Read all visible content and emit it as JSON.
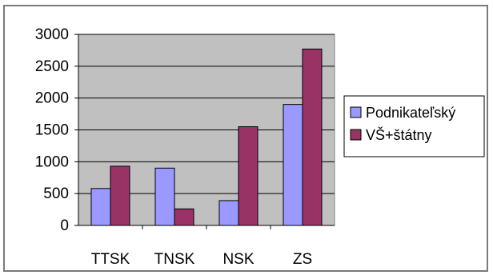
{
  "chart_data": {
    "type": "bar",
    "categories": [
      "TTSK",
      "TNSK",
      "NSK",
      "ZS"
    ],
    "series": [
      {
        "name": "Podnikateľský",
        "values": [
          580,
          900,
          390,
          1900
        ],
        "color": "#9999ff"
      },
      {
        "name": "VŠ+štátny",
        "values": [
          930,
          260,
          1550,
          2770
        ],
        "color": "#993366"
      }
    ],
    "yticks": [
      "0",
      "500",
      "1000",
      "1500",
      "2000",
      "2500",
      "3000"
    ],
    "ylim": [
      0,
      3000
    ],
    "grid": true,
    "legend_position": "right",
    "plot_background": "#c0c0c0"
  }
}
